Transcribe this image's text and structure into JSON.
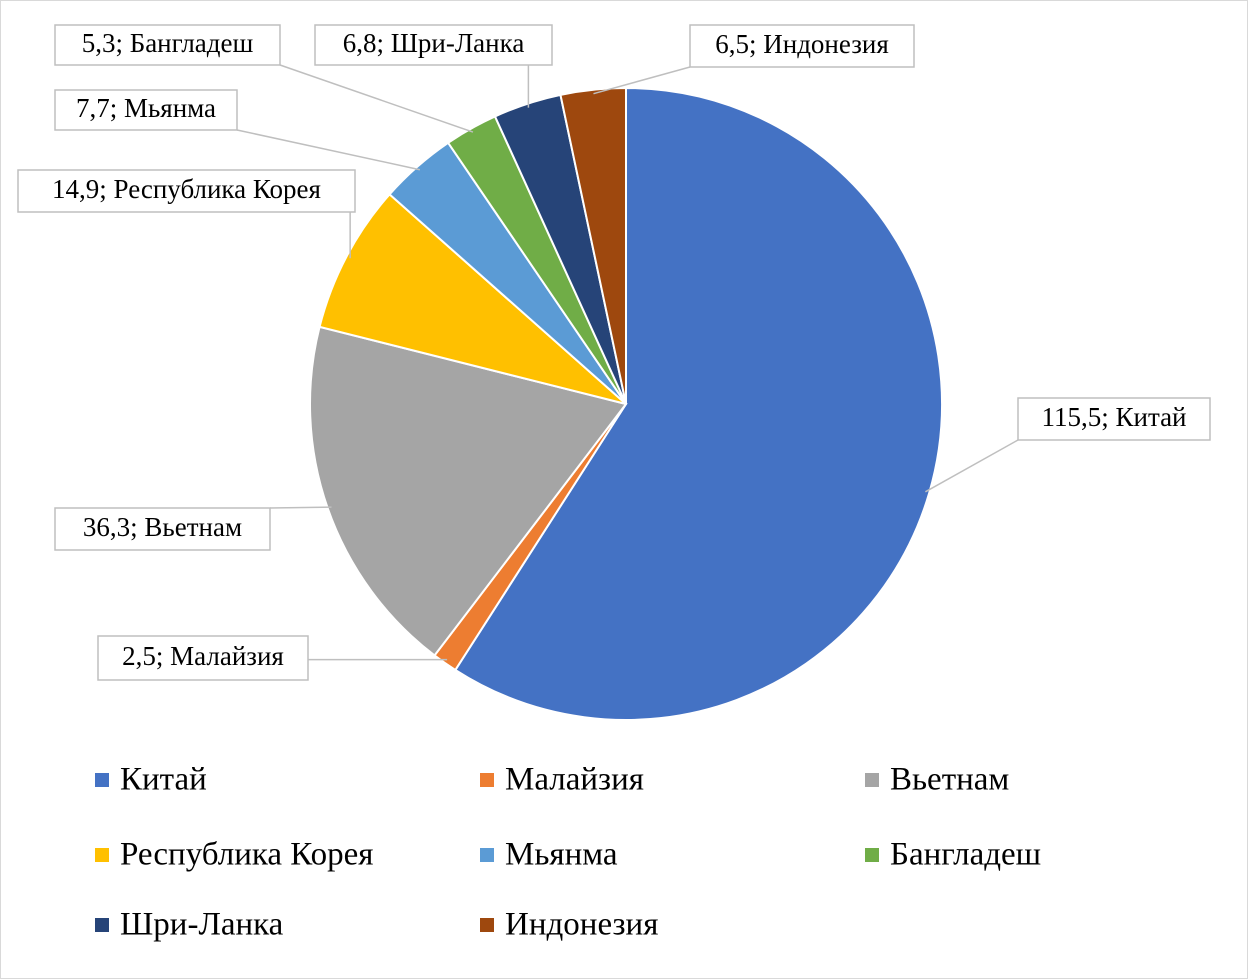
{
  "chart_data": {
    "type": "pie",
    "categories": [
      "Китай",
      "Малайзия",
      "Вьетнам",
      "Республика Корея",
      "Мьянма",
      "Бангладеш",
      "Шри-Ланка",
      "Индонезия"
    ],
    "values": [
      115.5,
      2.5,
      36.3,
      14.9,
      7.7,
      5.3,
      6.8,
      6.5
    ],
    "value_labels": [
      "115,5; Китай",
      "2,5; Малайзия",
      "36,3; Вьетнам",
      "14,9; Республика Корея",
      "7,7; Мьянма",
      "5,3; Бангладеш",
      "6,8; Шри-Ланка",
      "6,5; Индонезия"
    ],
    "colors": [
      "#4472c4",
      "#ed7d31",
      "#a5a5a5",
      "#ffc000",
      "#5b9bd5",
      "#70ad47",
      "#264478",
      "#9e480e"
    ],
    "legend": "bottom"
  }
}
